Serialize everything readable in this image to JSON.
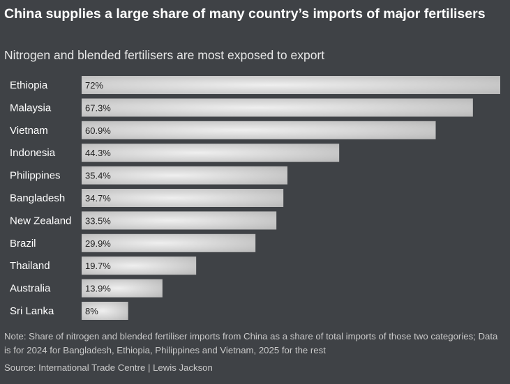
{
  "header": {
    "title": "China supplies a large share of many country’s imports of major fertilisers",
    "subtitle": "Nitrogen and blended fertilisers are most exposed to export"
  },
  "footer": {
    "note": "Note: Share of nitrogen and blended fertiliser imports from China as a share of total imports of those two categories; Data is for 2024 for Bangladesh, Ethiopia, Philippines and Vietnam, 2025 for the rest",
    "source": "Source: International Trade Centre | Lewis Jackson"
  },
  "colors": {
    "background": "#3f4246",
    "bar_light": "#eeeeee",
    "bar_dark": "#b9b9b9",
    "bar_label": "#222222",
    "category_label": "#ffffff"
  },
  "chart_data": {
    "type": "bar",
    "orientation": "horizontal",
    "title": "China supplies a large share of many country’s imports of major fertilisers",
    "subtitle": "Nitrogen and blended fertilisers are most exposed to export",
    "xlabel": "",
    "ylabel": "",
    "xlim": [
      0,
      72
    ],
    "grid": false,
    "categories": [
      "Ethiopia",
      "Malaysia",
      "Vietnam",
      "Indonesia",
      "Philippines",
      "Bangladesh",
      "New Zealand",
      "Brazil",
      "Thailand",
      "Australia",
      "Sri Lanka"
    ],
    "values": [
      72,
      67.3,
      60.9,
      44.3,
      35.4,
      34.7,
      33.5,
      29.9,
      19.7,
      13.9,
      8
    ],
    "value_labels": [
      "72%",
      "67.3%",
      "60.9%",
      "44.3%",
      "35.4%",
      "34.7%",
      "33.5%",
      "29.9%",
      "19.7%",
      "13.9%",
      "8%"
    ]
  }
}
